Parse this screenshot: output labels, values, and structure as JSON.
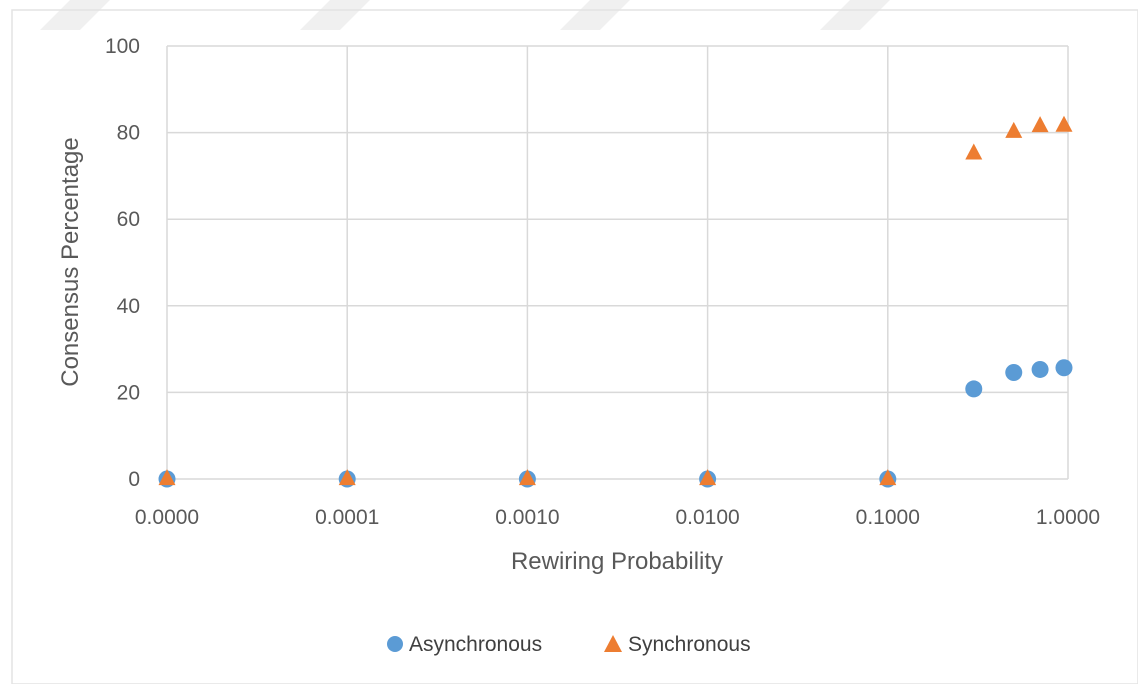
{
  "chart_data": {
    "type": "scatter",
    "title": "",
    "xlabel": "Rewiring Probability",
    "ylabel": "Consensus Percentage",
    "x_scale": "log",
    "x_ticks": [
      "0.0000",
      "0.0001",
      "0.0010",
      "0.0100",
      "0.1000",
      "1.0000"
    ],
    "ylim": [
      0,
      100
    ],
    "y_ticks": [
      0,
      20,
      40,
      60,
      80,
      100
    ],
    "grid": true,
    "legend_position": "bottom",
    "series": [
      {
        "name": "Asynchronous",
        "marker": "circle",
        "color": "#5b9bd5",
        "x": [
          0,
          0.0001,
          0.001,
          0.01,
          0.1,
          0.3,
          0.5,
          0.7,
          0.95
        ],
        "y": [
          0,
          0,
          0,
          0,
          0,
          20.8,
          24.6,
          25.3,
          25.7
        ]
      },
      {
        "name": "Synchronous",
        "marker": "triangle",
        "color": "#ed7d31",
        "x": [
          0,
          0.0001,
          0.001,
          0.01,
          0.1,
          0.3,
          0.5,
          0.7,
          0.95
        ],
        "y": [
          0,
          0,
          0,
          0,
          0,
          75.2,
          80.2,
          81.5,
          81.6
        ]
      }
    ]
  }
}
